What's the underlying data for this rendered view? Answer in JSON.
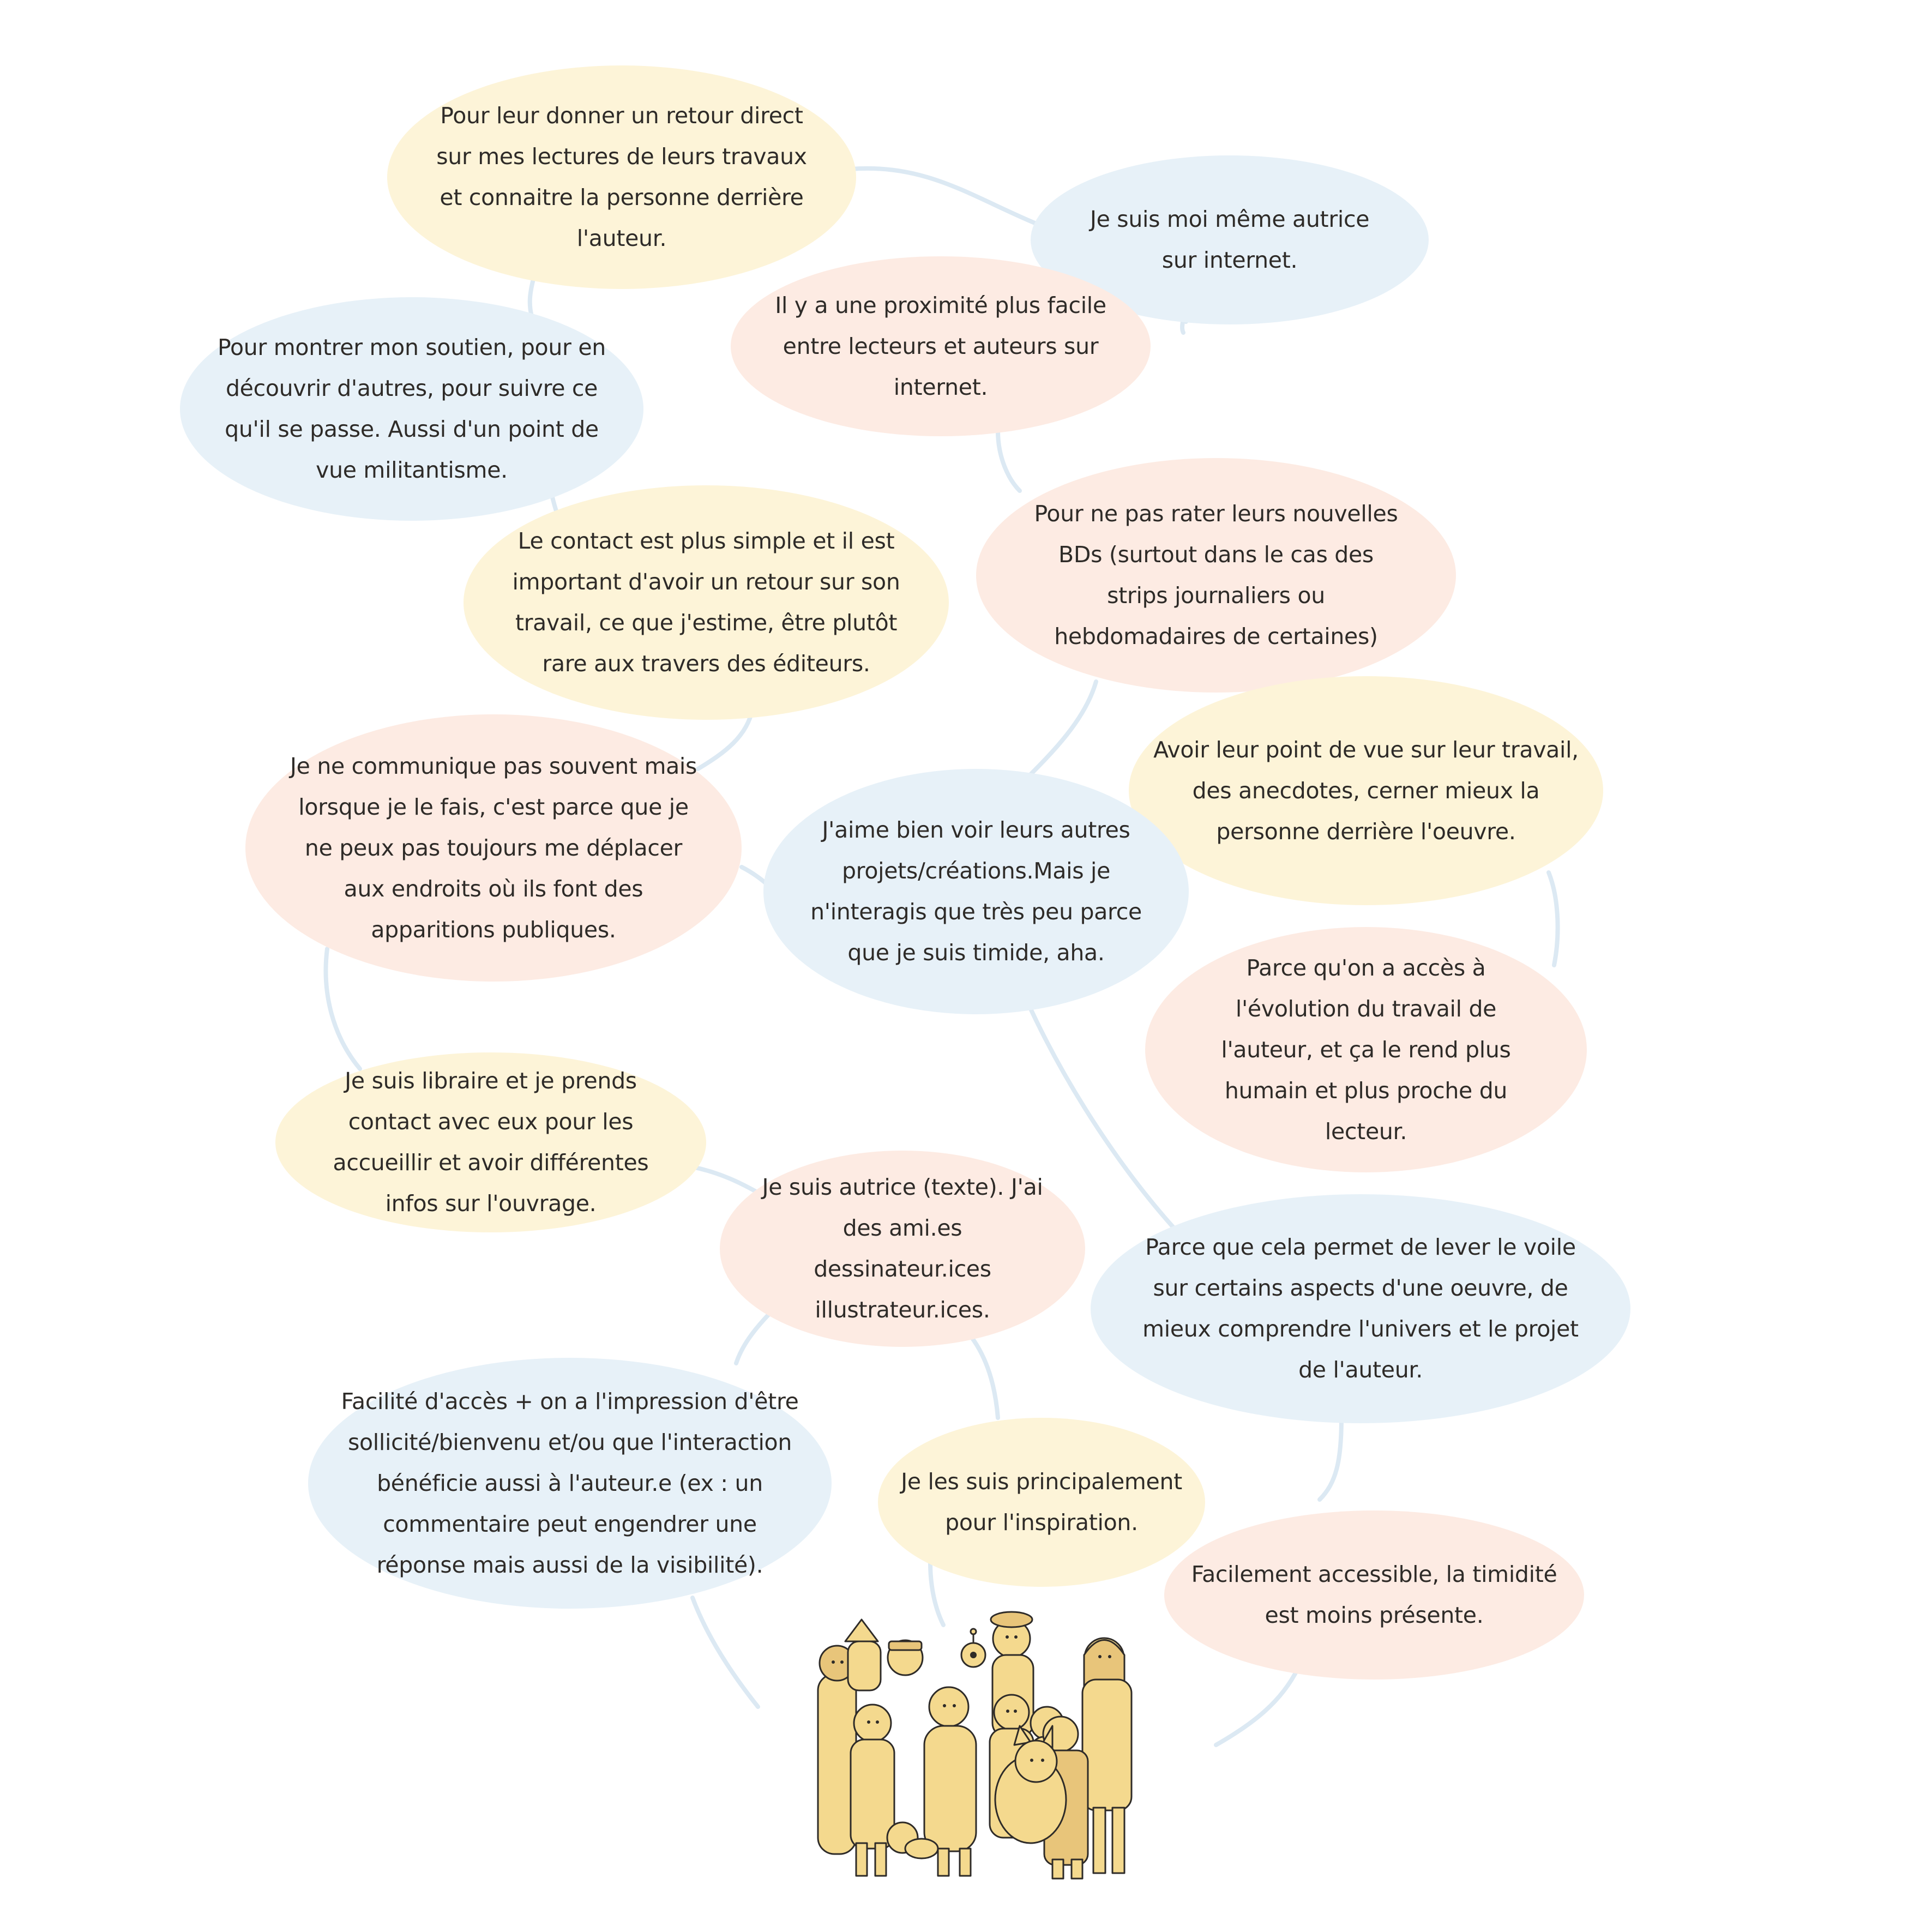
{
  "colors": {
    "yellow": "#fdf4d8",
    "blue": "#e7f1f8",
    "pink": "#fdebe3",
    "connector": "#dce9f3",
    "ink": "#2e2b28",
    "crowd": "#f4d98e"
  },
  "bubbles": [
    {
      "id": "b1",
      "color": "yellow",
      "text": "Pour leur donner un retour direct sur mes lectures de leurs travaux et connaitre la personne derrière l'auteur."
    },
    {
      "id": "b2",
      "color": "blue",
      "text": "Je suis moi même autrice sur internet."
    },
    {
      "id": "b3",
      "color": "pink",
      "text": "Il y a une proximité plus facile entre lecteurs et auteurs sur internet."
    },
    {
      "id": "b4",
      "color": "blue",
      "text": "Pour montrer mon soutien, pour en découvrir d'autres, pour suivre ce qu'il se passe. Aussi d'un point de vue militantisme."
    },
    {
      "id": "b5",
      "color": "yellow",
      "text": "Le contact est plus simple et il est important d'avoir un retour sur son travail, ce que j'estime, être plutôt rare aux travers des éditeurs."
    },
    {
      "id": "b6",
      "color": "pink",
      "text": "Pour ne pas rater leurs nouvelles BDs (surtout dans le cas des strips journaliers ou hebdomadaires de certaines)"
    },
    {
      "id": "b7",
      "color": "yellow",
      "text": "Avoir leur point de vue sur leur travail, des anecdotes, cerner mieux la personne derrière l'oeuvre."
    },
    {
      "id": "b8",
      "color": "pink",
      "text": "Je ne communique pas souvent mais lorsque je le fais, c'est parce que je ne peux pas toujours me déplacer aux endroits où ils font des apparitions publiques."
    },
    {
      "id": "b9",
      "color": "blue",
      "text": "J'aime bien voir leurs autres projets/créations.Mais je n'interagis que très peu parce que je suis timide, aha."
    },
    {
      "id": "b10",
      "color": "pink",
      "text": "Parce qu'on a accès à l'évolution du travail de l'auteur, et ça le rend plus humain et plus proche du lecteur."
    },
    {
      "id": "b11",
      "color": "yellow",
      "text": "Je suis libraire et je prends contact avec eux pour les accueillir et avoir différentes infos sur l'ouvrage."
    },
    {
      "id": "b12",
      "color": "pink",
      "text": "Je suis autrice (texte). J'ai des ami.es dessinateur.ices illustrateur.ices."
    },
    {
      "id": "b13",
      "color": "blue",
      "text": "Parce que cela permet de lever le voile sur certains aspects d'une oeuvre, de mieux comprendre l'univers et le projet de l'auteur."
    },
    {
      "id": "b14",
      "color": "blue",
      "text": "Facilité d'accès + on a l'impression d'être sollicité/bienvenu et/ou que l'interaction bénéficie aussi à l'auteur.e (ex : un commentaire peut engendrer une réponse mais aussi de la visibilité)."
    },
    {
      "id": "b15",
      "color": "yellow",
      "text": "Je les suis principalement pour l'inspiration."
    },
    {
      "id": "b16",
      "color": "pink",
      "text": "Facilement accessible, la timidité est moins présente."
    }
  ],
  "illustration": {
    "name": "crowd-of-readers-and-authors"
  }
}
